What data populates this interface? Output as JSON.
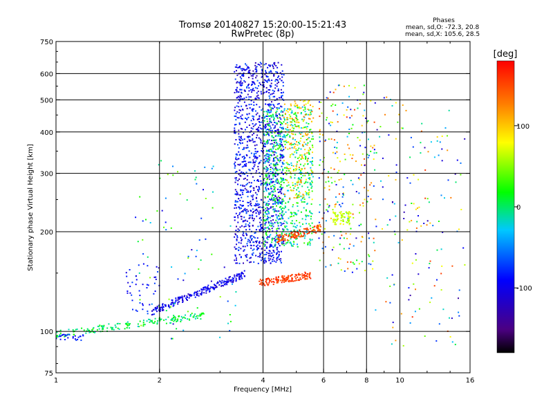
{
  "chart_data": {
    "type": "scatter",
    "title": "Tromsø 20140827 15:20:00-15:21:43",
    "subtitle": "RwPretec (8p)",
    "stats": {
      "heading": "Phases",
      "line1": "mean, sd,O: -72.3, 20.8",
      "line2": "mean, sd,X: 105.6, 28.5"
    },
    "xlabel": "Frequency [MHz]",
    "ylabel": "Stationary phase Virtual Height [km]",
    "x_scale": "log",
    "y_scale": "log",
    "xlim": [
      1,
      16
    ],
    "ylim": [
      75,
      750
    ],
    "x_ticks": [
      1,
      2,
      4,
      6,
      8,
      10,
      16
    ],
    "x_tick_labels": [
      "1",
      "2",
      "4",
      "6",
      "8",
      "10",
      "16"
    ],
    "x_gridlines": [
      2,
      4,
      6,
      8,
      10
    ],
    "y_ticks": [
      75,
      100,
      200,
      300,
      400,
      500,
      600,
      750
    ],
    "y_tick_labels": [
      "75",
      "100",
      "200",
      "300",
      "400",
      "500",
      "600",
      "750"
    ],
    "y_gridlines": [
      100,
      200,
      300,
      400,
      500,
      600
    ],
    "grid": true,
    "colorbar": {
      "label": "[deg]",
      "range": [
        -180,
        180
      ],
      "ticks": [
        100,
        0,
        -100
      ],
      "tick_labels": [
        "100",
        "0",
        "-100"
      ],
      "stops": [
        "#000000",
        "#5a0080",
        "#0000ff",
        "#00c8ff",
        "#00ff00",
        "#ffff00",
        "#ff8000",
        "#ff0000"
      ]
    },
    "clusters": [
      {
        "name": "low-frequency trace",
        "f": [
          1.0,
          2.7
        ],
        "h": [
          98,
          112
        ],
        "phase": [
          -20,
          30
        ],
        "kind": "line",
        "n": 180
      },
      {
        "name": "lower trace blue",
        "f": [
          1.0,
          1.2
        ],
        "h": [
          94,
          98
        ],
        "phase": [
          -110,
          -70
        ],
        "kind": "cloud",
        "n": 25
      },
      {
        "name": "rising trace",
        "f": [
          1.9,
          3.6
        ],
        "h": [
          115,
          150
        ],
        "phase": [
          -120,
          -80
        ],
        "kind": "line",
        "n": 220
      },
      {
        "name": "dense blue column",
        "f": [
          3.3,
          4.6
        ],
        "h": [
          160,
          650
        ],
        "phase": [
          -130,
          -60
        ],
        "kind": "cloud",
        "n": 1300
      },
      {
        "name": "spread F cyan",
        "f": [
          4.0,
          5.6
        ],
        "h": [
          180,
          480
        ],
        "phase": [
          -40,
          40
        ],
        "kind": "cloud",
        "n": 700
      },
      {
        "name": "yellow green band",
        "f": [
          4.6,
          5.6
        ],
        "h": [
          250,
          500
        ],
        "phase": [
          60,
          130
        ],
        "kind": "cloud",
        "n": 180
      },
      {
        "name": "orange lower trace",
        "f": [
          3.9,
          5.5
        ],
        "h": [
          140,
          148
        ],
        "phase": [
          140,
          170
        ],
        "kind": "line",
        "n": 140
      },
      {
        "name": "orange mid trace",
        "f": [
          4.4,
          5.9
        ],
        "h": [
          190,
          205
        ],
        "phase": [
          130,
          170
        ],
        "kind": "line",
        "n": 120
      },
      {
        "name": "scatter 6-8 MHz",
        "f": [
          5.8,
          8.5
        ],
        "h": [
          150,
          560
        ],
        "phase": [
          -120,
          160
        ],
        "kind": "cloud",
        "n": 260
      },
      {
        "name": "green patch",
        "f": [
          6.4,
          7.2
        ],
        "h": [
          210,
          230
        ],
        "phase": [
          50,
          80
        ],
        "kind": "cloud",
        "n": 70
      },
      {
        "name": "sparse 8-16 MHz",
        "f": [
          8.5,
          15.5
        ],
        "h": [
          90,
          520
        ],
        "phase": [
          -140,
          160
        ],
        "kind": "cloud",
        "n": 160
      },
      {
        "name": "low-frequency scatter",
        "f": [
          1.7,
          3.4
        ],
        "h": [
          95,
          330
        ],
        "phase": [
          -120,
          60
        ],
        "kind": "cloud",
        "n": 90
      },
      {
        "name": "blue 1.6-1.9",
        "f": [
          1.6,
          2.0
        ],
        "h": [
          115,
          160
        ],
        "phase": [
          -110,
          -70
        ],
        "kind": "cloud",
        "n": 40
      }
    ]
  }
}
